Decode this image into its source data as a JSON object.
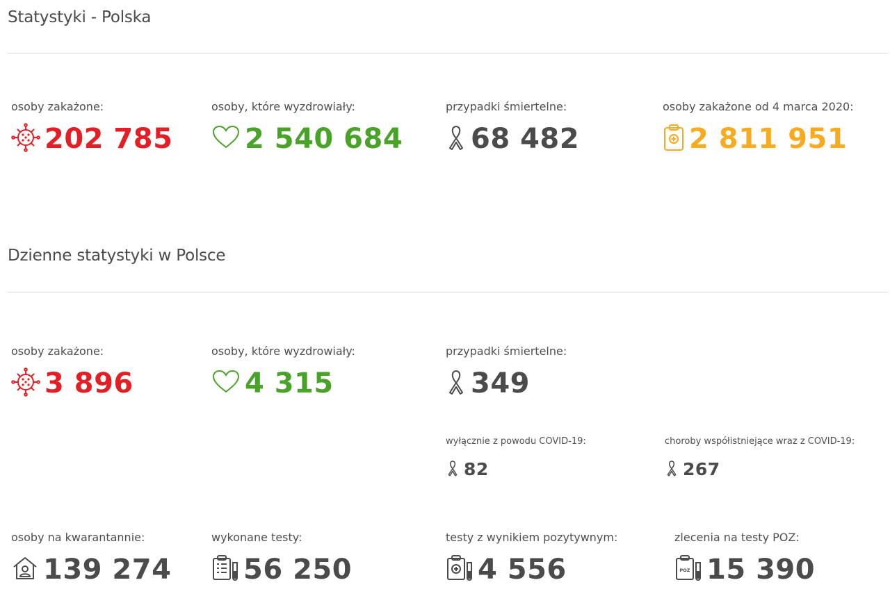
{
  "colors": {
    "infected": "#e31e24",
    "recovered": "#4aa329",
    "deaths": "#4b4b4b",
    "total": "#f6ab20"
  },
  "poland": {
    "title": "Statystyki - Polska",
    "stats": [
      {
        "label": "osoby zakażone:",
        "value": "202 785",
        "icon": "virus-icon"
      },
      {
        "label": "osoby, które wyzdrowiały:",
        "value": "2 540 684",
        "icon": "heart-icon"
      },
      {
        "label": "przypadki śmiertelne:",
        "value": "68 482",
        "icon": "ribbon-icon"
      },
      {
        "label": "osoby zakażone od 4 marca 2020:",
        "value": "2 811 951",
        "icon": "clipboard-medical-icon"
      }
    ]
  },
  "daily": {
    "title": "Dzienne statystyki w Polsce",
    "stats": [
      {
        "label": "osoby zakażone:",
        "value": "3 896",
        "icon": "virus-icon"
      },
      {
        "label": "osoby, które wyzdrowiały:",
        "value": "4 315",
        "icon": "heart-icon"
      },
      {
        "label": "przypadki śmiertelne:",
        "value": "349",
        "icon": "ribbon-icon"
      }
    ],
    "death_breakdown": [
      {
        "label": "wyłącznie z powodu COVID-19:",
        "value": "82",
        "icon": "ribbon-icon"
      },
      {
        "label": "choroby współistniejące wraz z COVID-19:",
        "value": "267",
        "icon": "ribbon-icon"
      }
    ],
    "more": [
      {
        "label": "osoby na kwarantannie:",
        "value": "139 274",
        "icon": "house-person-icon"
      },
      {
        "label": "wykonane testy:",
        "value": "56 250",
        "icon": "clipboard-test-icon"
      },
      {
        "label": "testy z wynikiem pozytywnym:",
        "value": "4 556",
        "icon": "clipboard-positive-icon"
      },
      {
        "label": "zlecenia na testy POZ:",
        "value": "15 390",
        "icon": "clipboard-poz-icon"
      }
    ]
  }
}
